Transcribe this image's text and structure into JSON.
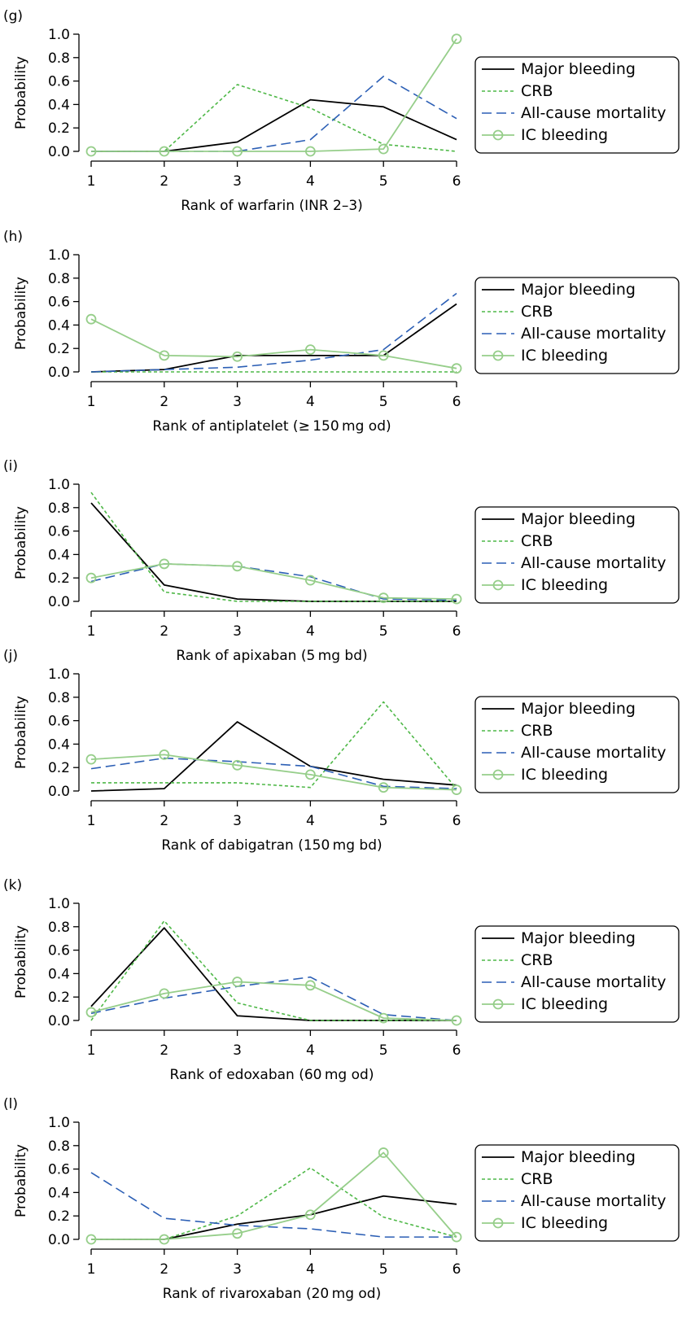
{
  "legend_labels": [
    "Major bleeding",
    "CRB",
    "All-cause mortality",
    "IC bleeding"
  ],
  "series_colors": {
    "Major bleeding": "#000000",
    "CRB": "#4fb848",
    "All-cause mortality": "#2c5fb5",
    "IC bleeding": "#96ce8a"
  },
  "chart_data": [
    {
      "type": "line",
      "panel_label": "(g)",
      "xlabel": "Rank of warfarin (INR 2–3)",
      "ylabel": "Probability",
      "x": [
        1,
        2,
        3,
        4,
        5,
        6
      ],
      "ylim": [
        0,
        1.0
      ],
      "yticks": [
        "0.0",
        "0.2",
        "0.4",
        "0.6",
        "0.8",
        "1.0"
      ],
      "legend_position": "right",
      "grid": false,
      "series": [
        {
          "name": "Major bleeding",
          "values": [
            0.0,
            0.0,
            0.08,
            0.44,
            0.38,
            0.1
          ]
        },
        {
          "name": "CRB",
          "values": [
            0.0,
            0.0,
            0.57,
            0.37,
            0.06,
            0.0
          ]
        },
        {
          "name": "All-cause mortality",
          "values": [
            0.0,
            0.0,
            0.0,
            0.1,
            0.64,
            0.28
          ]
        },
        {
          "name": "IC bleeding",
          "values": [
            0.0,
            0.0,
            0.0,
            0.0,
            0.02,
            0.96
          ]
        }
      ]
    },
    {
      "type": "line",
      "panel_label": "(h)",
      "xlabel": "Rank of antiplatelet (≥ 150 mg od)",
      "ylabel": "Probability",
      "x": [
        1,
        2,
        3,
        4,
        5,
        6
      ],
      "ylim": [
        0,
        1.0
      ],
      "yticks": [
        "0.0",
        "0.2",
        "0.4",
        "0.6",
        "0.8",
        "1.0"
      ],
      "legend_position": "right",
      "grid": false,
      "series": [
        {
          "name": "Major bleeding",
          "values": [
            0.0,
            0.02,
            0.14,
            0.14,
            0.14,
            0.58
          ]
        },
        {
          "name": "CRB",
          "values": [
            0.0,
            0.0,
            0.0,
            0.0,
            0.0,
            0.0
          ]
        },
        {
          "name": "All-cause mortality",
          "values": [
            0.0,
            0.02,
            0.04,
            0.1,
            0.19,
            0.67
          ]
        },
        {
          "name": "IC bleeding",
          "values": [
            0.45,
            0.14,
            0.13,
            0.19,
            0.14,
            0.03
          ]
        }
      ]
    },
    {
      "type": "line",
      "panel_label": "(i)",
      "xlabel": "Rank of apixaban (5 mg bd)",
      "ylabel": "Probability",
      "x": [
        1,
        2,
        3,
        4,
        5,
        6
      ],
      "ylim": [
        0,
        1.0
      ],
      "yticks": [
        "0.0",
        "0.2",
        "0.4",
        "0.6",
        "0.8",
        "1.0"
      ],
      "legend_position": "right",
      "grid": false,
      "series": [
        {
          "name": "Major bleeding",
          "values": [
            0.84,
            0.14,
            0.02,
            0.0,
            0.0,
            0.0
          ]
        },
        {
          "name": "CRB",
          "values": [
            0.93,
            0.08,
            0.0,
            0.0,
            0.0,
            0.0
          ]
        },
        {
          "name": "All-cause mortality",
          "values": [
            0.17,
            0.32,
            0.3,
            0.21,
            0.02,
            0.01
          ]
        },
        {
          "name": "IC bleeding",
          "values": [
            0.2,
            0.32,
            0.3,
            0.18,
            0.03,
            0.02
          ]
        }
      ]
    },
    {
      "type": "line",
      "panel_label": "(j)",
      "xlabel": "Rank of dabigatran (150 mg bd)",
      "ylabel": "Probability",
      "x": [
        1,
        2,
        3,
        4,
        5,
        6
      ],
      "ylim": [
        0,
        1.0
      ],
      "yticks": [
        "0.0",
        "0.2",
        "0.4",
        "0.6",
        "0.8",
        "1.0"
      ],
      "legend_position": "right",
      "grid": false,
      "series": [
        {
          "name": "Major bleeding",
          "values": [
            0.0,
            0.02,
            0.59,
            0.21,
            0.1,
            0.05
          ]
        },
        {
          "name": "CRB",
          "values": [
            0.07,
            0.07,
            0.07,
            0.03,
            0.76,
            0.02
          ]
        },
        {
          "name": "All-cause mortality",
          "values": [
            0.19,
            0.28,
            0.25,
            0.21,
            0.04,
            0.02
          ]
        },
        {
          "name": "IC bleeding",
          "values": [
            0.27,
            0.31,
            0.22,
            0.14,
            0.03,
            0.01
          ]
        }
      ]
    },
    {
      "type": "line",
      "panel_label": "(k)",
      "xlabel": "Rank of edoxaban (60 mg od)",
      "ylabel": "Probability",
      "x": [
        1,
        2,
        3,
        4,
        5,
        6
      ],
      "ylim": [
        0,
        1.0
      ],
      "yticks": [
        "0.0",
        "0.2",
        "0.4",
        "0.6",
        "0.8",
        "1.0"
      ],
      "legend_position": "right",
      "grid": false,
      "series": [
        {
          "name": "Major bleeding",
          "values": [
            0.12,
            0.79,
            0.04,
            0.0,
            0.0,
            0.0
          ]
        },
        {
          "name": "CRB",
          "values": [
            0.0,
            0.85,
            0.15,
            0.0,
            0.0,
            0.0
          ]
        },
        {
          "name": "All-cause mortality",
          "values": [
            0.06,
            0.19,
            0.29,
            0.37,
            0.05,
            0.0
          ]
        },
        {
          "name": "IC bleeding",
          "values": [
            0.07,
            0.23,
            0.33,
            0.3,
            0.02,
            0.0
          ]
        }
      ]
    },
    {
      "type": "line",
      "panel_label": "(l)",
      "xlabel": "Rank of rivaroxaban (20 mg od)",
      "ylabel": "Probability",
      "x": [
        1,
        2,
        3,
        4,
        5,
        6
      ],
      "ylim": [
        0,
        1.0
      ],
      "yticks": [
        "0.0",
        "0.2",
        "0.4",
        "0.6",
        "0.8",
        "1.0"
      ],
      "legend_position": "right",
      "grid": false,
      "series": [
        {
          "name": "Major bleeding",
          "values": [
            0.0,
            0.0,
            0.13,
            0.21,
            0.37,
            0.3
          ]
        },
        {
          "name": "CRB",
          "values": [
            0.0,
            0.0,
            0.2,
            0.61,
            0.19,
            0.02
          ]
        },
        {
          "name": "All-cause mortality",
          "values": [
            0.57,
            0.18,
            0.12,
            0.09,
            0.02,
            0.02
          ]
        },
        {
          "name": "IC bleeding",
          "values": [
            0.0,
            0.0,
            0.05,
            0.21,
            0.74,
            0.02
          ]
        }
      ]
    }
  ]
}
